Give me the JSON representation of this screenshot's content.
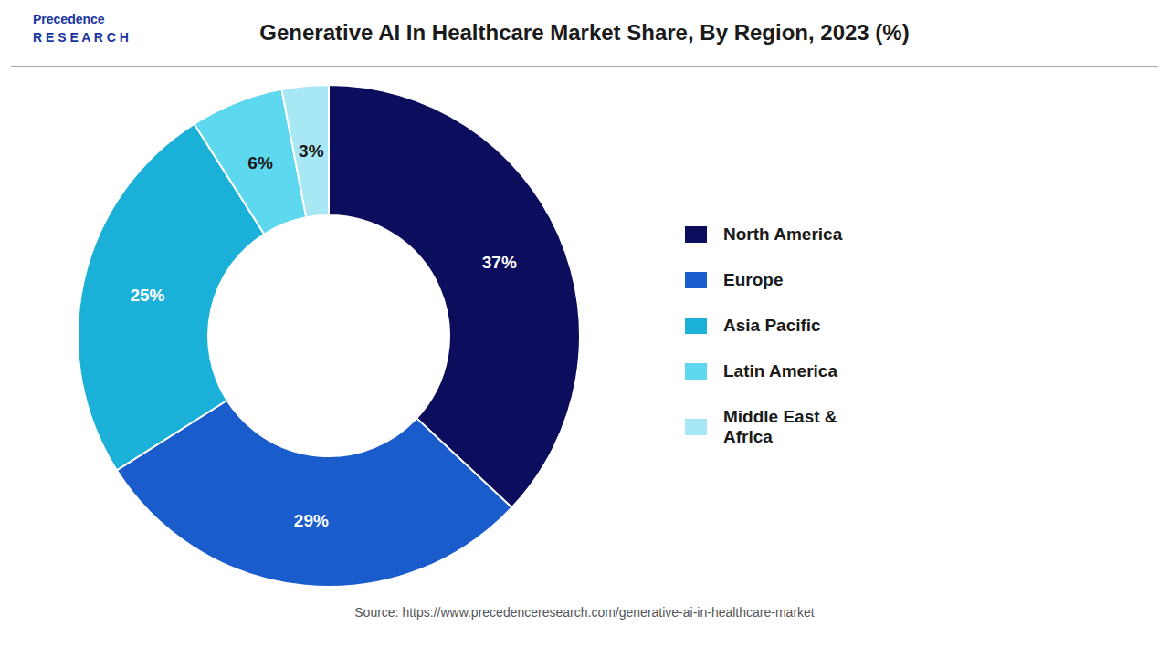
{
  "chart_data": {
    "type": "pie",
    "title": "Generative AI In Healthcare Market Share, By Region, 2023 (%)",
    "categories": [
      "North America",
      "Europe",
      "Asia Pacific",
      "Latin America",
      "Middle East &\nAfrica"
    ],
    "values": [
      37,
      29,
      25,
      6,
      3
    ],
    "value_labels": [
      "37%",
      "29%",
      "25%",
      "6%",
      "3%"
    ],
    "colors": [
      "#0d0d5e",
      "#1a5ccc",
      "#1ab0d8",
      "#5ed8ef",
      "#a8e8f5"
    ],
    "data_labels": true,
    "legend": "right",
    "annotations": [
      "Precedence\nR E S E A R C H",
      "Source: https://www.precedenceresearch.com/generative-ai-in-healthcare-market"
    ]
  }
}
